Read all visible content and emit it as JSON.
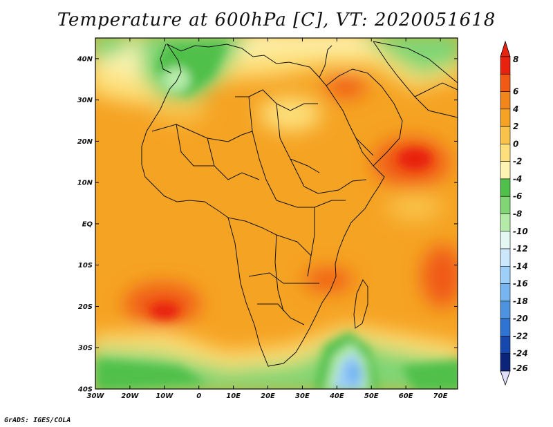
{
  "title": "Temperature at 600hPa [C], VT: 2020051618",
  "footer": "GrADS: IGES/COLA",
  "map": {
    "lon_range": [
      -30,
      75
    ],
    "lat_range": [
      -40,
      45
    ],
    "lon_ticks": [
      "30W",
      "20W",
      "10W",
      "0",
      "10E",
      "20E",
      "30E",
      "40E",
      "50E",
      "60E",
      "70E"
    ],
    "lat_ticks": [
      "40N",
      "30N",
      "20N",
      "10N",
      "EQ",
      "10S",
      "20S",
      "30S",
      "40S"
    ]
  },
  "colorbar": {
    "labels": [
      "8",
      "6",
      "4",
      "2",
      "0",
      "-2",
      "-4",
      "-6",
      "-8",
      "-10",
      "-12",
      "-14",
      "-16",
      "-18",
      "-20",
      "-22",
      "-24",
      "-26"
    ],
    "colors": [
      "#e8220e",
      "#f05a14",
      "#f3861a",
      "#f6a325",
      "#f9c24a",
      "#fde07c",
      "#fdf4b4",
      "#4fc04a",
      "#80d574",
      "#b5eba8",
      "#e4f7f2",
      "#cce6fb",
      "#9ecff8",
      "#76b5f0",
      "#4d93e0",
      "#2f74d2",
      "#1648ae",
      "#0c2479"
    ],
    "top_color": "#e62410",
    "bottom_color": "#e0e0fb"
  }
}
